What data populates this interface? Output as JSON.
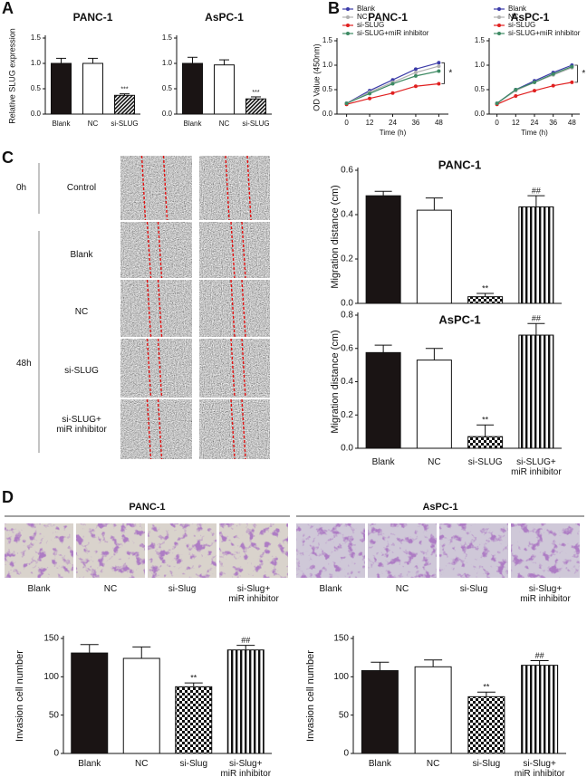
{
  "panel_labels": [
    "A",
    "B",
    "C",
    "D"
  ],
  "scratch": {
    "groups": [
      "0h",
      "48h"
    ],
    "rows": [
      "Control",
      "Blank",
      "NC",
      "si-SLUG",
      "si-SLUG+\nmiR inhibitor"
    ]
  },
  "transwell": [
    {
      "title": "PANC-1",
      "labels": [
        "Blank",
        "NC",
        "si-Slug",
        "si-Slug+\nmiR inhibitor"
      ]
    },
    {
      "title": "AsPC-1",
      "labels": [
        "Blank",
        "NC",
        "si-Slug",
        "si-Slug+\nmiR inhibitor"
      ]
    }
  ],
  "chart_data": [
    {
      "type": "bar",
      "title": "PANC-1",
      "y_label": "Relative SLUG expression",
      "categories": [
        "Blank",
        "NC",
        "si-SLUG"
      ],
      "values": [
        1.0,
        1.0,
        0.37
      ],
      "errors": [
        0.1,
        0.1,
        0.03
      ],
      "fills": [
        "black",
        "white",
        "hatch"
      ],
      "ylim": [
        0,
        1.5
      ],
      "yticks": [
        {
          "value": 0,
          "label": "0.0"
        },
        0.5,
        {
          "value": 1,
          "label": "1.0"
        },
        1.5
      ],
      "annotations": [
        {
          "index": 2,
          "text": "***"
        }
      ]
    },
    {
      "type": "bar",
      "title": "AsPC-1",
      "categories": [
        "Blank",
        "NC",
        "si-SLUG"
      ],
      "values": [
        1.0,
        0.97,
        0.3
      ],
      "errors": [
        0.12,
        0.1,
        0.04
      ],
      "fills": [
        "black",
        "white",
        "hatch"
      ],
      "ylim": [
        0,
        1.5
      ],
      "yticks": [
        {
          "value": 0,
          "label": "0.0"
        },
        0.5,
        {
          "value": 1,
          "label": "1.0"
        },
        1.5
      ],
      "annotations": [
        {
          "index": 2,
          "text": "***"
        }
      ]
    },
    {
      "type": "line",
      "title": "PANC-1",
      "x_label": "Time (h)",
      "y_label": "OD Value (450nm)",
      "x": [
        0,
        12,
        24,
        36,
        48
      ],
      "xlim": [
        -5,
        53
      ],
      "xticks": [
        0,
        12,
        24,
        36,
        48
      ],
      "ylim": [
        0,
        1.5
      ],
      "yticks": [
        {
          "value": 0,
          "label": "0.0"
        },
        0.5,
        {
          "value": 1,
          "label": "1.0"
        },
        1.5
      ],
      "series": [
        {
          "name": "Blank",
          "color": "#3b3ba8",
          "values": [
            0.22,
            0.48,
            0.7,
            0.92,
            1.05
          ]
        },
        {
          "name": "NC",
          "color": "#b0b0b0",
          "values": [
            0.22,
            0.45,
            0.65,
            0.85,
            0.98
          ]
        },
        {
          "name": "si-SLUG",
          "color": "#e02020",
          "values": [
            0.2,
            0.32,
            0.43,
            0.57,
            0.62
          ]
        },
        {
          "name": "si-SLUG+miR inhibitor",
          "color": "#3d8a63",
          "values": [
            0.22,
            0.42,
            0.62,
            0.78,
            0.88
          ]
        }
      ],
      "annotations": [
        {
          "text": "*"
        }
      ]
    },
    {
      "type": "line",
      "title": "AsPC-1",
      "x_label": "Time (h)",
      "x": [
        0,
        12,
        24,
        36,
        48
      ],
      "xlim": [
        -5,
        53
      ],
      "xticks": [
        0,
        12,
        24,
        36,
        48
      ],
      "ylim": [
        0,
        1.5
      ],
      "yticks": [
        {
          "value": 0,
          "label": "0.0"
        },
        0.5,
        {
          "value": 1,
          "label": "1.0"
        },
        1.5
      ],
      "series": [
        {
          "name": "Blank",
          "color": "#3b3ba8",
          "values": [
            0.22,
            0.5,
            0.68,
            0.85,
            1.0
          ]
        },
        {
          "name": "NC",
          "color": "#b0b0b0",
          "values": [
            0.22,
            0.48,
            0.65,
            0.8,
            0.95
          ]
        },
        {
          "name": "si-SLUG",
          "color": "#e02020",
          "values": [
            0.2,
            0.37,
            0.48,
            0.58,
            0.65
          ]
        },
        {
          "name": "si-SLUG+miR inhibitor",
          "color": "#3d8a63",
          "values": [
            0.22,
            0.5,
            0.65,
            0.82,
            0.97
          ]
        }
      ],
      "annotations": [
        {
          "text": "*"
        }
      ]
    },
    {
      "type": "bar",
      "title": "PANC-1",
      "y_label": "Migration distance (cm)",
      "categories": [
        null,
        null,
        null,
        null
      ],
      "values": [
        0.485,
        0.42,
        0.03,
        0.435
      ],
      "errors": [
        0.02,
        0.055,
        0.015,
        0.05
      ],
      "fills": [
        "black",
        "white",
        "checker",
        "stripes"
      ],
      "ylim": [
        0,
        0.6
      ],
      "yticks": [
        {
          "value": 0,
          "label": "0.0"
        },
        0.2,
        0.4,
        0.6
      ],
      "annotations": [
        {
          "index": 2,
          "text": "**"
        },
        {
          "index": 3,
          "text": "##"
        }
      ]
    },
    {
      "type": "bar",
      "title": "AsPC-1",
      "y_label": "Migration distance (cm)",
      "categories": [
        "Blank",
        "NC",
        "si-SLUG",
        "si-SLUG+\nmiR inhibitor"
      ],
      "values": [
        0.575,
        0.53,
        0.07,
        0.68
      ],
      "errors": [
        0.045,
        0.07,
        0.07,
        0.07
      ],
      "fills": [
        "black",
        "white",
        "checker",
        "stripes"
      ],
      "ylim": [
        0,
        0.8
      ],
      "yticks": [
        {
          "value": 0,
          "label": "0.0"
        },
        0.2,
        0.4,
        0.6,
        0.8
      ],
      "annotations": [
        {
          "index": 2,
          "text": "**"
        },
        {
          "index": 3,
          "text": "##"
        }
      ]
    },
    {
      "type": "bar",
      "y_label": "Invasion cell number",
      "categories": [
        "Blank",
        "NC",
        "si-Slug",
        "si-Slug+\nmiR inhibitor"
      ],
      "values": [
        131,
        124,
        87,
        135
      ],
      "errors": [
        11,
        15,
        5,
        6
      ],
      "fills": [
        "black",
        "white",
        "checker",
        "stripes"
      ],
      "ylim": [
        0,
        150
      ],
      "yticks": [
        0,
        50,
        100,
        150
      ],
      "annotations": [
        {
          "index": 2,
          "text": "**"
        },
        {
          "index": 3,
          "text": "##"
        }
      ]
    },
    {
      "type": "bar",
      "y_label": "Invasion cell number",
      "categories": [
        "Blank",
        "NC",
        "si-Slug",
        "si-Slug+\nmiR inhibitor"
      ],
      "values": [
        108,
        113,
        74,
        115
      ],
      "errors": [
        11,
        9,
        6,
        6
      ],
      "fills": [
        "black",
        "white",
        "checker",
        "stripes"
      ],
      "ylim": [
        0,
        150
      ],
      "yticks": [
        0,
        50,
        100,
        150
      ],
      "annotations": [
        {
          "index": 2,
          "text": "**"
        },
        {
          "index": 3,
          "text": "##"
        }
      ]
    }
  ]
}
